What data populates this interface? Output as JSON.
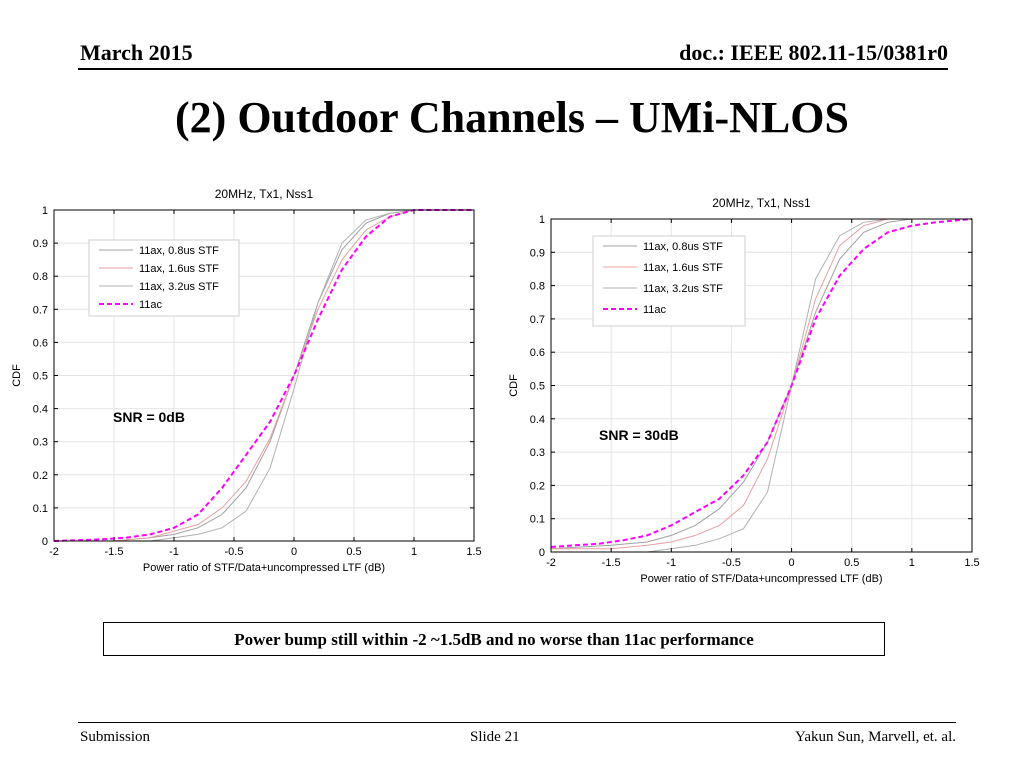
{
  "header": {
    "date": "March 2015",
    "doc": "doc.: IEEE 802.11-15/0381r0"
  },
  "title": "(2) Outdoor Channels – UMi-NLOS",
  "callout": "Power bump still within -2 ~1.5dB and no worse than 11ac performance",
  "footer": {
    "left": "Submission",
    "center": "Slide 21",
    "right": "Yakun Sun,  Marvell, et. al."
  },
  "colors": {
    "11ax_08": "#a0a0a0",
    "11ax_16": "#e8a0a0",
    "11ax_32": "#b0b0b0",
    "11ac": "#ff00ff"
  },
  "chart_data": [
    {
      "type": "line",
      "title": "20MHz, Tx1, Nss1",
      "xlabel": "Power ratio of STF/Data+uncompressed LTF (dB)",
      "ylabel": "CDF",
      "xlim": [
        -2,
        1.5
      ],
      "ylim": [
        0,
        1
      ],
      "xticks": [
        -2,
        -1.5,
        -1,
        -0.5,
        0,
        0.5,
        1,
        1.5
      ],
      "xtick_labels": [
        "-2",
        "-1.5",
        "-1",
        "-0.5",
        "0",
        "0.5",
        "1",
        "1.5"
      ],
      "yticks": [
        0,
        0.1,
        0.2,
        0.3,
        0.4,
        0.5,
        0.6,
        0.7,
        0.8,
        0.9,
        1
      ],
      "ytick_labels": [
        "0",
        "0.1",
        "0.2",
        "0.3",
        "0.4",
        "0.5",
        "0.6",
        "0.7",
        "0.8",
        "0.9",
        "1"
      ],
      "grid": true,
      "legend": "top-left",
      "annotation": "SNR = 0dB",
      "series": [
        {
          "name": "11ax, 0.8us STF",
          "color": "#a0a0a0",
          "x": [
            -2,
            -1.5,
            -1.2,
            -1,
            -0.8,
            -0.6,
            -0.4,
            -0.2,
            0,
            0.2,
            0.4,
            0.6,
            0.8,
            1,
            1.2,
            1.5
          ],
          "y": [
            0,
            0,
            0.01,
            0.02,
            0.04,
            0.08,
            0.16,
            0.3,
            0.5,
            0.72,
            0.88,
            0.96,
            0.99,
            1,
            1,
            1
          ]
        },
        {
          "name": "11ax, 1.6us STF",
          "color": "#e8a0a0",
          "x": [
            -2,
            -1.5,
            -1.2,
            -1,
            -0.8,
            -0.6,
            -0.4,
            -0.2,
            0,
            0.2,
            0.4,
            0.6,
            0.8,
            1,
            1.2,
            1.5
          ],
          "y": [
            0,
            0,
            0.01,
            0.03,
            0.05,
            0.1,
            0.18,
            0.31,
            0.5,
            0.7,
            0.85,
            0.94,
            0.98,
            1,
            1,
            1
          ]
        },
        {
          "name": "11ax, 3.2us STF",
          "color": "#b0b0b0",
          "x": [
            -2,
            -1.5,
            -1.2,
            -1,
            -0.8,
            -0.6,
            -0.4,
            -0.2,
            0,
            0.2,
            0.4,
            0.6,
            0.8,
            1,
            1.2,
            1.5
          ],
          "y": [
            0,
            0,
            0,
            0.01,
            0.02,
            0.04,
            0.09,
            0.22,
            0.46,
            0.72,
            0.9,
            0.97,
            0.99,
            1,
            1,
            1
          ]
        },
        {
          "name": "11ac",
          "color": "#ff00ff",
          "x": [
            -2,
            -1.6,
            -1.4,
            -1.2,
            -1,
            -0.8,
            -0.6,
            -0.4,
            -0.2,
            0,
            0.2,
            0.4,
            0.6,
            0.8,
            1,
            1.2,
            1.5
          ],
          "y": [
            0,
            0.005,
            0.01,
            0.02,
            0.04,
            0.08,
            0.16,
            0.26,
            0.36,
            0.5,
            0.67,
            0.82,
            0.92,
            0.98,
            1,
            1,
            1
          ]
        }
      ]
    },
    {
      "type": "line",
      "title": "20MHz, Tx1, Nss1",
      "xlabel": "Power ratio of STF/Data+uncompressed LTF (dB)",
      "ylabel": "CDF",
      "xlim": [
        -2,
        1.5
      ],
      "ylim": [
        0,
        1
      ],
      "xticks": [
        -2,
        -1.5,
        -1,
        -0.5,
        0,
        0.5,
        1,
        1.5
      ],
      "xtick_labels": [
        "-2",
        "-1.5",
        "-1",
        "-0.5",
        "0",
        "0.5",
        "1",
        "1.5"
      ],
      "yticks": [
        0,
        0.1,
        0.2,
        0.3,
        0.4,
        0.5,
        0.6,
        0.7,
        0.8,
        0.9,
        1
      ],
      "ytick_labels": [
        "0",
        "0.1",
        "0.2",
        "0.3",
        "0.4",
        "0.5",
        "0.6",
        "0.7",
        "0.8",
        "0.9",
        "1"
      ],
      "grid": true,
      "legend": "top-left",
      "annotation": "SNR = 30dB",
      "series": [
        {
          "name": "11ax, 0.8us STF",
          "color": "#a0a0a0",
          "x": [
            -2,
            -1.5,
            -1.2,
            -1,
            -0.8,
            -0.6,
            -0.4,
            -0.2,
            0,
            0.2,
            0.4,
            0.6,
            0.8,
            1,
            1.2,
            1.5
          ],
          "y": [
            0.01,
            0.02,
            0.03,
            0.05,
            0.08,
            0.13,
            0.21,
            0.33,
            0.5,
            0.72,
            0.88,
            0.96,
            0.99,
            1,
            1,
            1
          ]
        },
        {
          "name": "11ax, 1.6us STF",
          "color": "#e8a0a0",
          "x": [
            -2,
            -1.5,
            -1.2,
            -1,
            -0.8,
            -0.6,
            -0.4,
            -0.2,
            0,
            0.2,
            0.4,
            0.6,
            0.8,
            1,
            1.2,
            1.5
          ],
          "y": [
            0.01,
            0.01,
            0.02,
            0.03,
            0.05,
            0.08,
            0.14,
            0.28,
            0.5,
            0.76,
            0.92,
            0.98,
            1,
            1,
            1,
            1
          ]
        },
        {
          "name": "11ax, 3.2us STF",
          "color": "#b0b0b0",
          "x": [
            -2,
            -1.5,
            -1.2,
            -1,
            -0.8,
            -0.6,
            -0.4,
            -0.2,
            0,
            0.2,
            0.4,
            0.6,
            0.8,
            1,
            1.2,
            1.5
          ],
          "y": [
            0,
            0,
            0,
            0.01,
            0.02,
            0.04,
            0.07,
            0.18,
            0.5,
            0.82,
            0.95,
            0.99,
            1,
            1,
            1,
            1
          ]
        },
        {
          "name": "11ac",
          "color": "#ff00ff",
          "x": [
            -2,
            -1.8,
            -1.6,
            -1.4,
            -1.2,
            -1,
            -0.8,
            -0.6,
            -0.4,
            -0.2,
            0,
            0.2,
            0.4,
            0.6,
            0.8,
            1,
            1.2,
            1.5
          ],
          "y": [
            0.015,
            0.02,
            0.025,
            0.035,
            0.05,
            0.08,
            0.12,
            0.16,
            0.23,
            0.33,
            0.5,
            0.7,
            0.83,
            0.91,
            0.96,
            0.98,
            0.99,
            1
          ]
        }
      ]
    }
  ]
}
